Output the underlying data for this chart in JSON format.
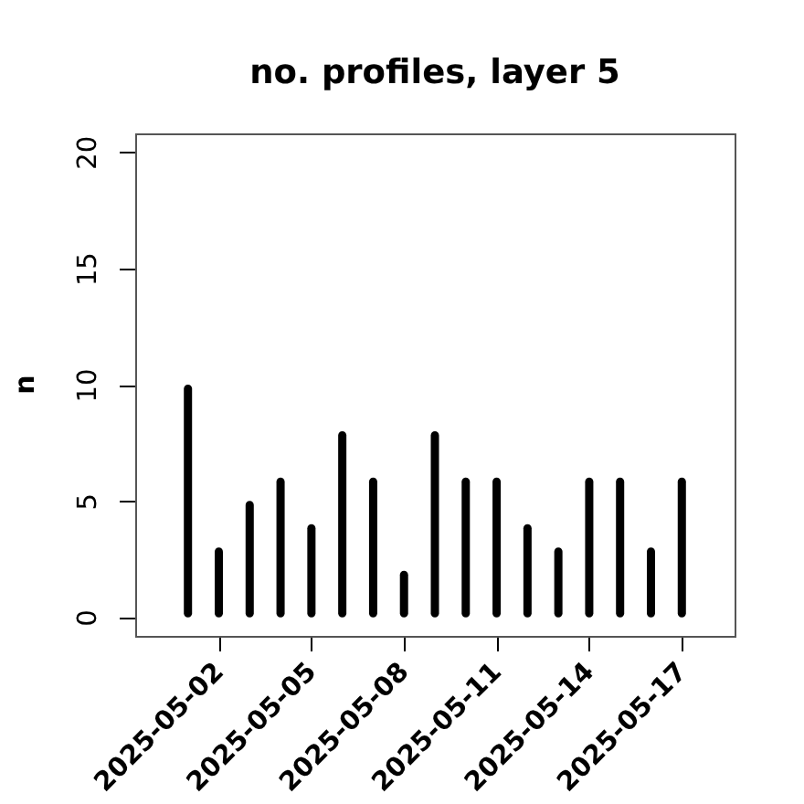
{
  "chart_data": {
    "type": "bar",
    "title": "no. profiles, layer 5",
    "ylabel": "n",
    "x": [
      "2025-05-01",
      "2025-05-02",
      "2025-05-03",
      "2025-05-04",
      "2025-05-05",
      "2025-05-06",
      "2025-05-07",
      "2025-05-08",
      "2025-05-09",
      "2025-05-10",
      "2025-05-11",
      "2025-05-12",
      "2025-05-13",
      "2025-05-14",
      "2025-05-15",
      "2025-05-16",
      "2025-05-17"
    ],
    "values": [
      10,
      3,
      5,
      6,
      4,
      8,
      6,
      2,
      8,
      6,
      6,
      4,
      3,
      6,
      6,
      3,
      6
    ],
    "color": "#000000",
    "xlim": [
      "2025-04-29T07:00",
      "2025-05-18T17:00"
    ],
    "ylim": [
      -0.8,
      20.8
    ],
    "xticks": [
      "2025-05-02",
      "2025-05-05",
      "2025-05-08",
      "2025-05-11",
      "2025-05-14",
      "2025-05-17"
    ],
    "yticks": [
      0,
      5,
      10,
      15,
      20
    ]
  }
}
